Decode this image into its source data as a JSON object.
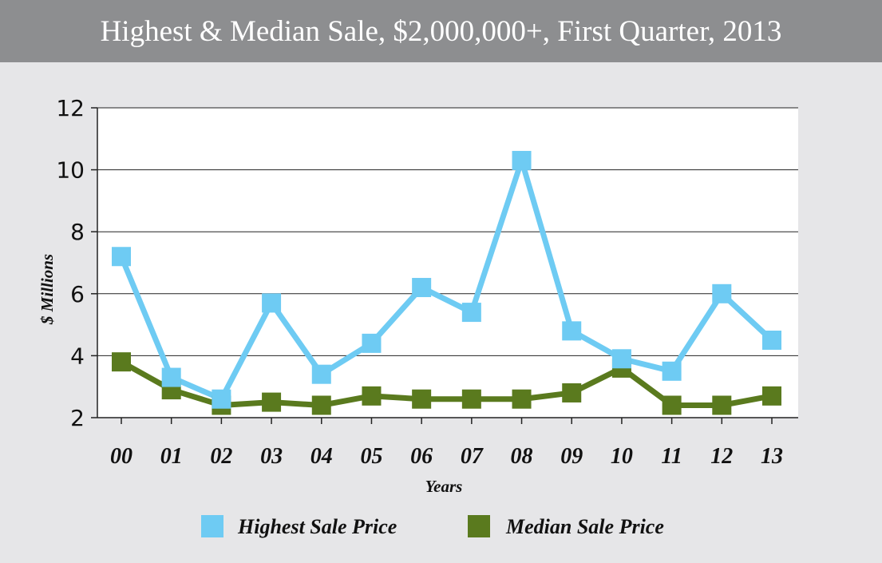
{
  "chart_data": {
    "type": "line",
    "title": "Highest & Median Sale, $2,000,000+, First Quarter, 2013",
    "xlabel": "Years",
    "ylabel": "$ Millions",
    "categories": [
      "00",
      "01",
      "02",
      "03",
      "04",
      "05",
      "06",
      "07",
      "08",
      "09",
      "10",
      "11",
      "12",
      "13"
    ],
    "yticks": [
      "2",
      "4",
      "6",
      "8",
      "10",
      "12"
    ],
    "ylim": [
      2,
      12
    ],
    "grid": true,
    "legend_position": "bottom",
    "series": [
      {
        "name": "Highest Sale Price",
        "color": "#6ecbf3",
        "values": [
          7.2,
          3.3,
          2.6,
          5.7,
          3.4,
          4.4,
          6.2,
          5.4,
          10.3,
          4.8,
          3.9,
          3.5,
          6.0,
          4.5
        ]
      },
      {
        "name": "Median Sale Price",
        "color": "#5a7a1e",
        "values": [
          3.8,
          2.9,
          2.4,
          2.5,
          2.4,
          2.7,
          2.6,
          2.6,
          2.6,
          2.8,
          3.6,
          2.4,
          2.4,
          2.7
        ]
      }
    ]
  }
}
